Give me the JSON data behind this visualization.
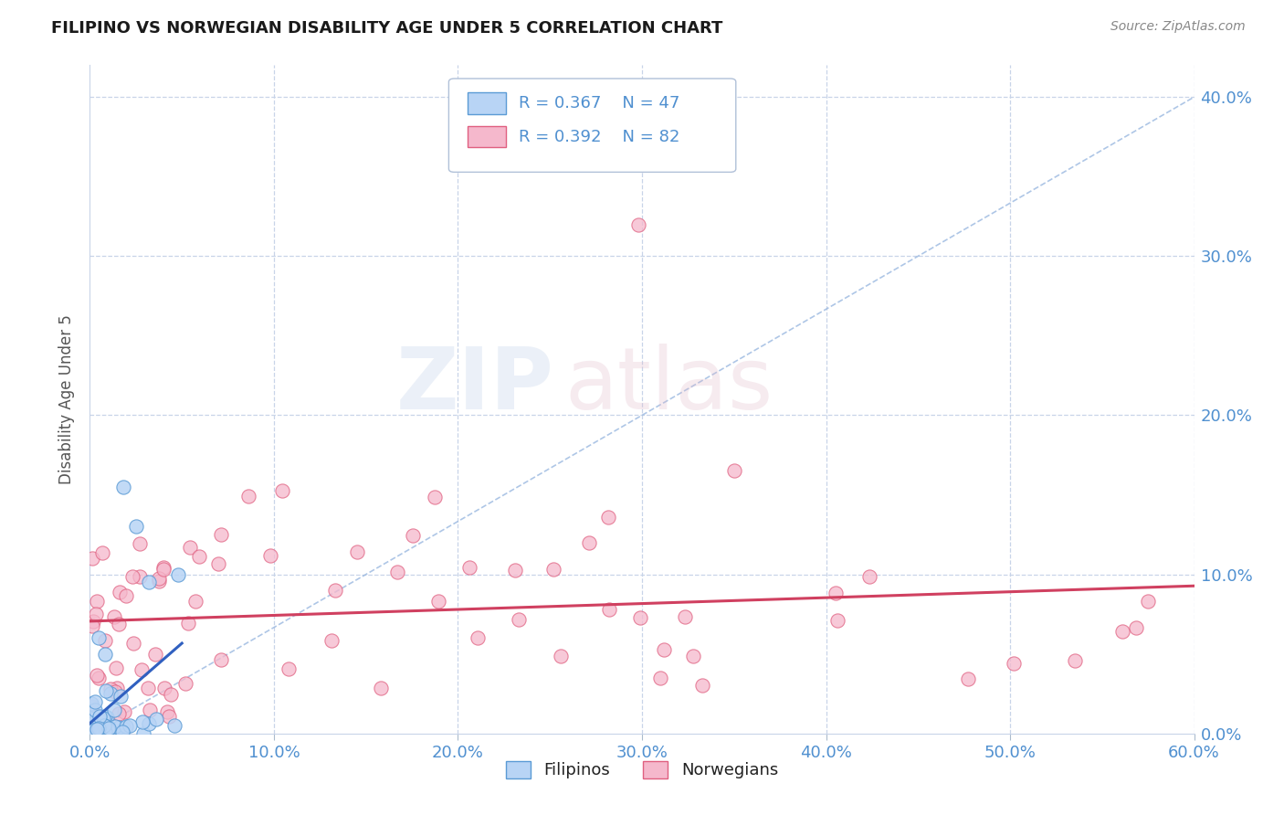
{
  "title": "FILIPINO VS NORWEGIAN DISABILITY AGE UNDER 5 CORRELATION CHART",
  "source": "Source: ZipAtlas.com",
  "ylabel_label": "Disability Age Under 5",
  "xlim": [
    0,
    0.6
  ],
  "ylim": [
    0,
    0.42
  ],
  "ytick_right_vals": [
    0.0,
    0.1,
    0.2,
    0.3,
    0.4
  ],
  "ytick_right_labels": [
    "0.0%",
    "10.0%",
    "20.0%",
    "30.0%",
    "40.0%"
  ],
  "xtick_vals": [
    0.0,
    0.1,
    0.2,
    0.3,
    0.4,
    0.5,
    0.6
  ],
  "xtick_labels": [
    "0.0%",
    "10.0%",
    "20.0%",
    "30.0%",
    "40.0%",
    "50.0%",
    "60.0%"
  ],
  "filipino_fill_color": "#b8d4f5",
  "filipino_edge_color": "#5b9bd5",
  "norwegian_fill_color": "#f5b8cc",
  "norwegian_edge_color": "#e06080",
  "fil_line_color": "#3060c0",
  "nor_line_color": "#d04060",
  "diag_line_color": "#9ab8e0",
  "legend_R1": "R = 0.367",
  "legend_N1": "N = 47",
  "legend_R2": "R = 0.392",
  "legend_N2": "N = 82",
  "watermark_zip": "ZIP",
  "watermark_atlas": "atlas",
  "background_color": "#ffffff",
  "grid_color": "#c8d4e8",
  "title_color": "#1a1a1a",
  "axis_color": "#5090d0",
  "legend_box_color": "#e8eef8"
}
